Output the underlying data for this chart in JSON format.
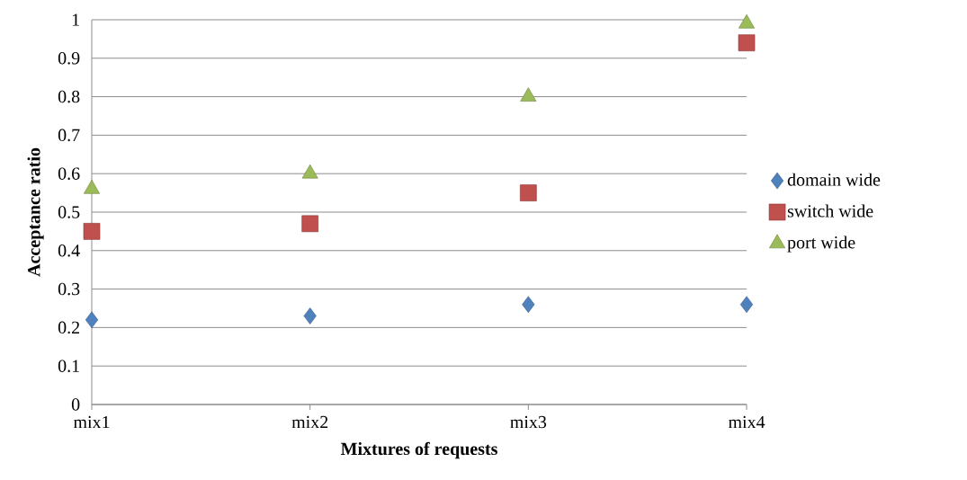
{
  "chart_data": {
    "type": "scatter",
    "xlabel": "Mixtures of requests",
    "ylabel": "Acceptance ratio",
    "categories": [
      "mix1",
      "mix2",
      "mix3",
      "mix4"
    ],
    "series": [
      {
        "name": "domain wide",
        "color": "#4f81bd",
        "marker": "diamond",
        "values": [
          0.22,
          0.23,
          0.26,
          0.26
        ]
      },
      {
        "name": "switch wide",
        "color": "#c0504d",
        "marker": "square",
        "values": [
          0.45,
          0.47,
          0.55,
          0.94
        ]
      },
      {
        "name": "port wide",
        "color": "#9bbb59",
        "marker": "triangle",
        "values": [
          0.56,
          0.6,
          0.8,
          0.99
        ]
      }
    ],
    "ylim": [
      0,
      1
    ],
    "yticks": [
      0,
      0.1,
      0.2,
      0.3,
      0.4,
      0.5,
      0.6,
      0.7,
      0.8,
      0.9,
      1
    ],
    "grid": "y",
    "legend": "right"
  }
}
